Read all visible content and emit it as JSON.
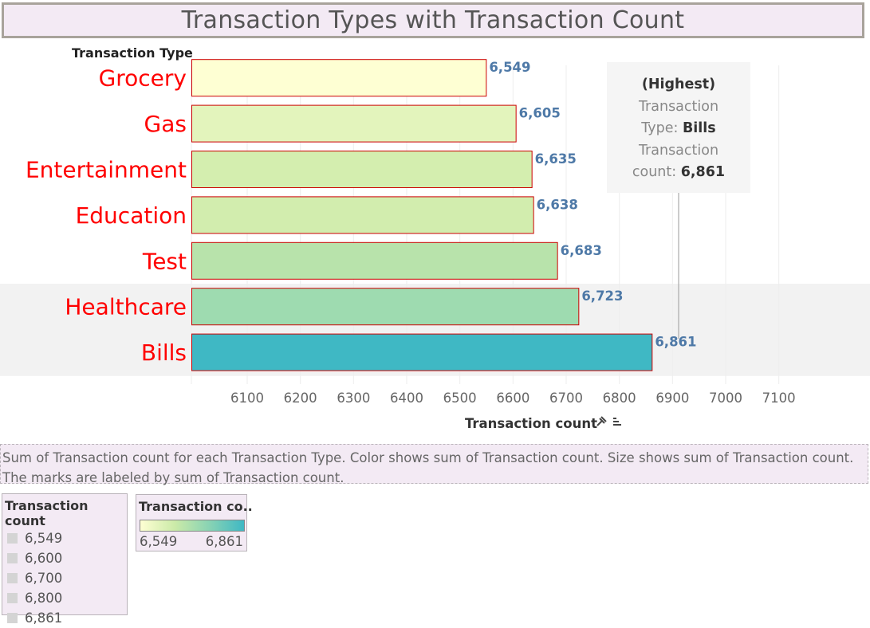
{
  "title": "Transaction Types with Transaction Count",
  "row_header": "Transaction Type",
  "chart_data": {
    "type": "bar",
    "orientation": "horizontal",
    "categories": [
      "Grocery",
      "Gas",
      "Entertainment",
      "Education",
      "Test",
      "Healthcare",
      "Bills"
    ],
    "values": [
      6549,
      6605,
      6635,
      6638,
      6683,
      6723,
      6861
    ],
    "data_labels": [
      "6,549",
      "6,605",
      "6,635",
      "6,638",
      "6,683",
      "6,723",
      "6,861"
    ],
    "xlabel": "Transaction count",
    "xlim": [
      6000,
      7130
    ],
    "xticks": [
      6100,
      6200,
      6300,
      6400,
      6500,
      6600,
      6700,
      6800,
      6900,
      7000,
      7100
    ],
    "grid": true,
    "highlighted_rows": [
      "Healthcare",
      "Bills"
    ],
    "color_scale": {
      "min": 6549,
      "max": 6861,
      "colors": [
        "#feffd3",
        "#cbeaa8",
        "#88d3b4",
        "#3fb8c4"
      ]
    },
    "category_label_color": "#ff0000",
    "data_label_color": "#4e79a7",
    "bar_border_color": "#cc0000"
  },
  "tooltip": {
    "line1": "(Highest)",
    "line2": "Transaction",
    "line3_key": "Type: ",
    "line3_val": "Bills",
    "line4": "Transaction",
    "line5_key": "count: ",
    "line5_val": "6,861"
  },
  "description": "Sum of Transaction count for each Transaction Type.  Color shows sum of Transaction count.  Size shows sum of Transaction count.  The marks are labeled by sum of Transaction count.",
  "legend_size": {
    "title": "Transaction count",
    "items": [
      "6,549",
      "6,600",
      "6,700",
      "6,800",
      "6,861"
    ]
  },
  "legend_color": {
    "title": "Transaction co..",
    "min_label": "6,549",
    "max_label": "6,861"
  },
  "icons": {
    "pin": "pin-icon",
    "sort": "sort-icon"
  }
}
